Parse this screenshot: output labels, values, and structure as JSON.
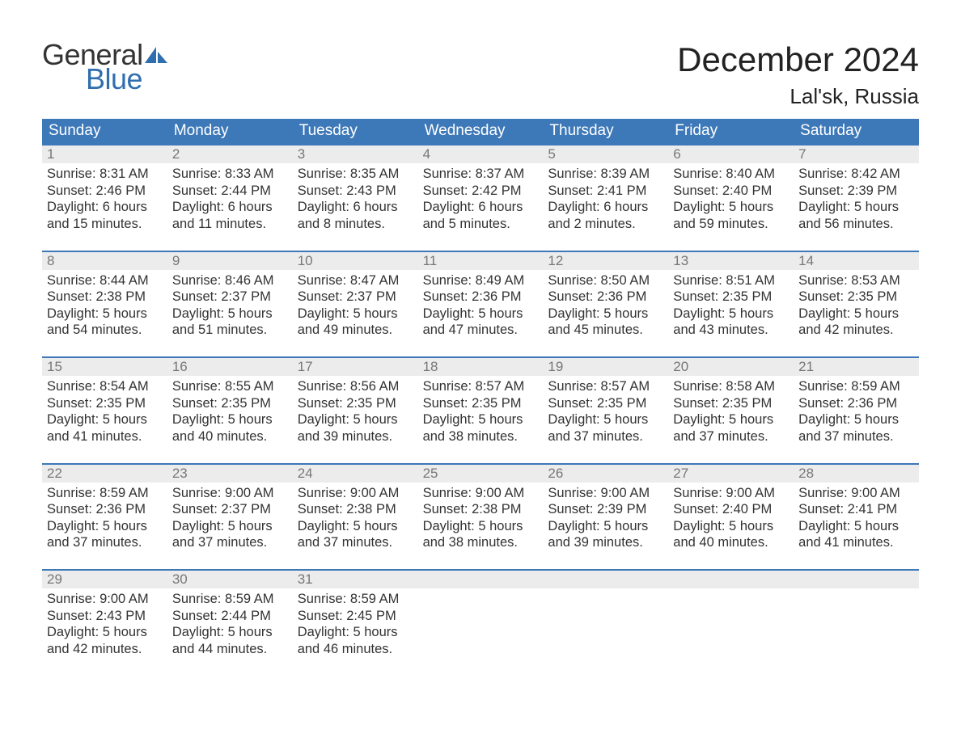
{
  "branding": {
    "logo_top": "General",
    "logo_bottom": "Blue",
    "logo_text_color_top": "#333333",
    "logo_text_color_bottom": "#2f6faf",
    "logo_shape_color": "#2f6faf"
  },
  "title": {
    "month": "December 2024",
    "location": "Lal'sk, Russia"
  },
  "colors": {
    "header_bg": "#3d78b8",
    "header_text": "#ffffff",
    "row_divider": "#3d78b8",
    "daynum_bg": "#ececec",
    "daynum_text": "#777777",
    "body_text": "#333333",
    "page_bg": "#ffffff"
  },
  "weekdays": [
    "Sunday",
    "Monday",
    "Tuesday",
    "Wednesday",
    "Thursday",
    "Friday",
    "Saturday"
  ],
  "weeks": [
    [
      {
        "n": "1",
        "sunrise": "8:31 AM",
        "sunset": "2:46 PM",
        "dl1": "Daylight: 6 hours",
        "dl2": "and 15 minutes."
      },
      {
        "n": "2",
        "sunrise": "8:33 AM",
        "sunset": "2:44 PM",
        "dl1": "Daylight: 6 hours",
        "dl2": "and 11 minutes."
      },
      {
        "n": "3",
        "sunrise": "8:35 AM",
        "sunset": "2:43 PM",
        "dl1": "Daylight: 6 hours",
        "dl2": "and 8 minutes."
      },
      {
        "n": "4",
        "sunrise": "8:37 AM",
        "sunset": "2:42 PM",
        "dl1": "Daylight: 6 hours",
        "dl2": "and 5 minutes."
      },
      {
        "n": "5",
        "sunrise": "8:39 AM",
        "sunset": "2:41 PM",
        "dl1": "Daylight: 6 hours",
        "dl2": "and 2 minutes."
      },
      {
        "n": "6",
        "sunrise": "8:40 AM",
        "sunset": "2:40 PM",
        "dl1": "Daylight: 5 hours",
        "dl2": "and 59 minutes."
      },
      {
        "n": "7",
        "sunrise": "8:42 AM",
        "sunset": "2:39 PM",
        "dl1": "Daylight: 5 hours",
        "dl2": "and 56 minutes."
      }
    ],
    [
      {
        "n": "8",
        "sunrise": "8:44 AM",
        "sunset": "2:38 PM",
        "dl1": "Daylight: 5 hours",
        "dl2": "and 54 minutes."
      },
      {
        "n": "9",
        "sunrise": "8:46 AM",
        "sunset": "2:37 PM",
        "dl1": "Daylight: 5 hours",
        "dl2": "and 51 minutes."
      },
      {
        "n": "10",
        "sunrise": "8:47 AM",
        "sunset": "2:37 PM",
        "dl1": "Daylight: 5 hours",
        "dl2": "and 49 minutes."
      },
      {
        "n": "11",
        "sunrise": "8:49 AM",
        "sunset": "2:36 PM",
        "dl1": "Daylight: 5 hours",
        "dl2": "and 47 minutes."
      },
      {
        "n": "12",
        "sunrise": "8:50 AM",
        "sunset": "2:36 PM",
        "dl1": "Daylight: 5 hours",
        "dl2": "and 45 minutes."
      },
      {
        "n": "13",
        "sunrise": "8:51 AM",
        "sunset": "2:35 PM",
        "dl1": "Daylight: 5 hours",
        "dl2": "and 43 minutes."
      },
      {
        "n": "14",
        "sunrise": "8:53 AM",
        "sunset": "2:35 PM",
        "dl1": "Daylight: 5 hours",
        "dl2": "and 42 minutes."
      }
    ],
    [
      {
        "n": "15",
        "sunrise": "8:54 AM",
        "sunset": "2:35 PM",
        "dl1": "Daylight: 5 hours",
        "dl2": "and 41 minutes."
      },
      {
        "n": "16",
        "sunrise": "8:55 AM",
        "sunset": "2:35 PM",
        "dl1": "Daylight: 5 hours",
        "dl2": "and 40 minutes."
      },
      {
        "n": "17",
        "sunrise": "8:56 AM",
        "sunset": "2:35 PM",
        "dl1": "Daylight: 5 hours",
        "dl2": "and 39 minutes."
      },
      {
        "n": "18",
        "sunrise": "8:57 AM",
        "sunset": "2:35 PM",
        "dl1": "Daylight: 5 hours",
        "dl2": "and 38 minutes."
      },
      {
        "n": "19",
        "sunrise": "8:57 AM",
        "sunset": "2:35 PM",
        "dl1": "Daylight: 5 hours",
        "dl2": "and 37 minutes."
      },
      {
        "n": "20",
        "sunrise": "8:58 AM",
        "sunset": "2:35 PM",
        "dl1": "Daylight: 5 hours",
        "dl2": "and 37 minutes."
      },
      {
        "n": "21",
        "sunrise": "8:59 AM",
        "sunset": "2:36 PM",
        "dl1": "Daylight: 5 hours",
        "dl2": "and 37 minutes."
      }
    ],
    [
      {
        "n": "22",
        "sunrise": "8:59 AM",
        "sunset": "2:36 PM",
        "dl1": "Daylight: 5 hours",
        "dl2": "and 37 minutes."
      },
      {
        "n": "23",
        "sunrise": "9:00 AM",
        "sunset": "2:37 PM",
        "dl1": "Daylight: 5 hours",
        "dl2": "and 37 minutes."
      },
      {
        "n": "24",
        "sunrise": "9:00 AM",
        "sunset": "2:38 PM",
        "dl1": "Daylight: 5 hours",
        "dl2": "and 37 minutes."
      },
      {
        "n": "25",
        "sunrise": "9:00 AM",
        "sunset": "2:38 PM",
        "dl1": "Daylight: 5 hours",
        "dl2": "and 38 minutes."
      },
      {
        "n": "26",
        "sunrise": "9:00 AM",
        "sunset": "2:39 PM",
        "dl1": "Daylight: 5 hours",
        "dl2": "and 39 minutes."
      },
      {
        "n": "27",
        "sunrise": "9:00 AM",
        "sunset": "2:40 PM",
        "dl1": "Daylight: 5 hours",
        "dl2": "and 40 minutes."
      },
      {
        "n": "28",
        "sunrise": "9:00 AM",
        "sunset": "2:41 PM",
        "dl1": "Daylight: 5 hours",
        "dl2": "and 41 minutes."
      }
    ],
    [
      {
        "n": "29",
        "sunrise": "9:00 AM",
        "sunset": "2:43 PM",
        "dl1": "Daylight: 5 hours",
        "dl2": "and 42 minutes."
      },
      {
        "n": "30",
        "sunrise": "8:59 AM",
        "sunset": "2:44 PM",
        "dl1": "Daylight: 5 hours",
        "dl2": "and 44 minutes."
      },
      {
        "n": "31",
        "sunrise": "8:59 AM",
        "sunset": "2:45 PM",
        "dl1": "Daylight: 5 hours",
        "dl2": "and 46 minutes."
      },
      null,
      null,
      null,
      null
    ]
  ],
  "labels": {
    "sunrise_prefix": "Sunrise: ",
    "sunset_prefix": "Sunset: "
  }
}
